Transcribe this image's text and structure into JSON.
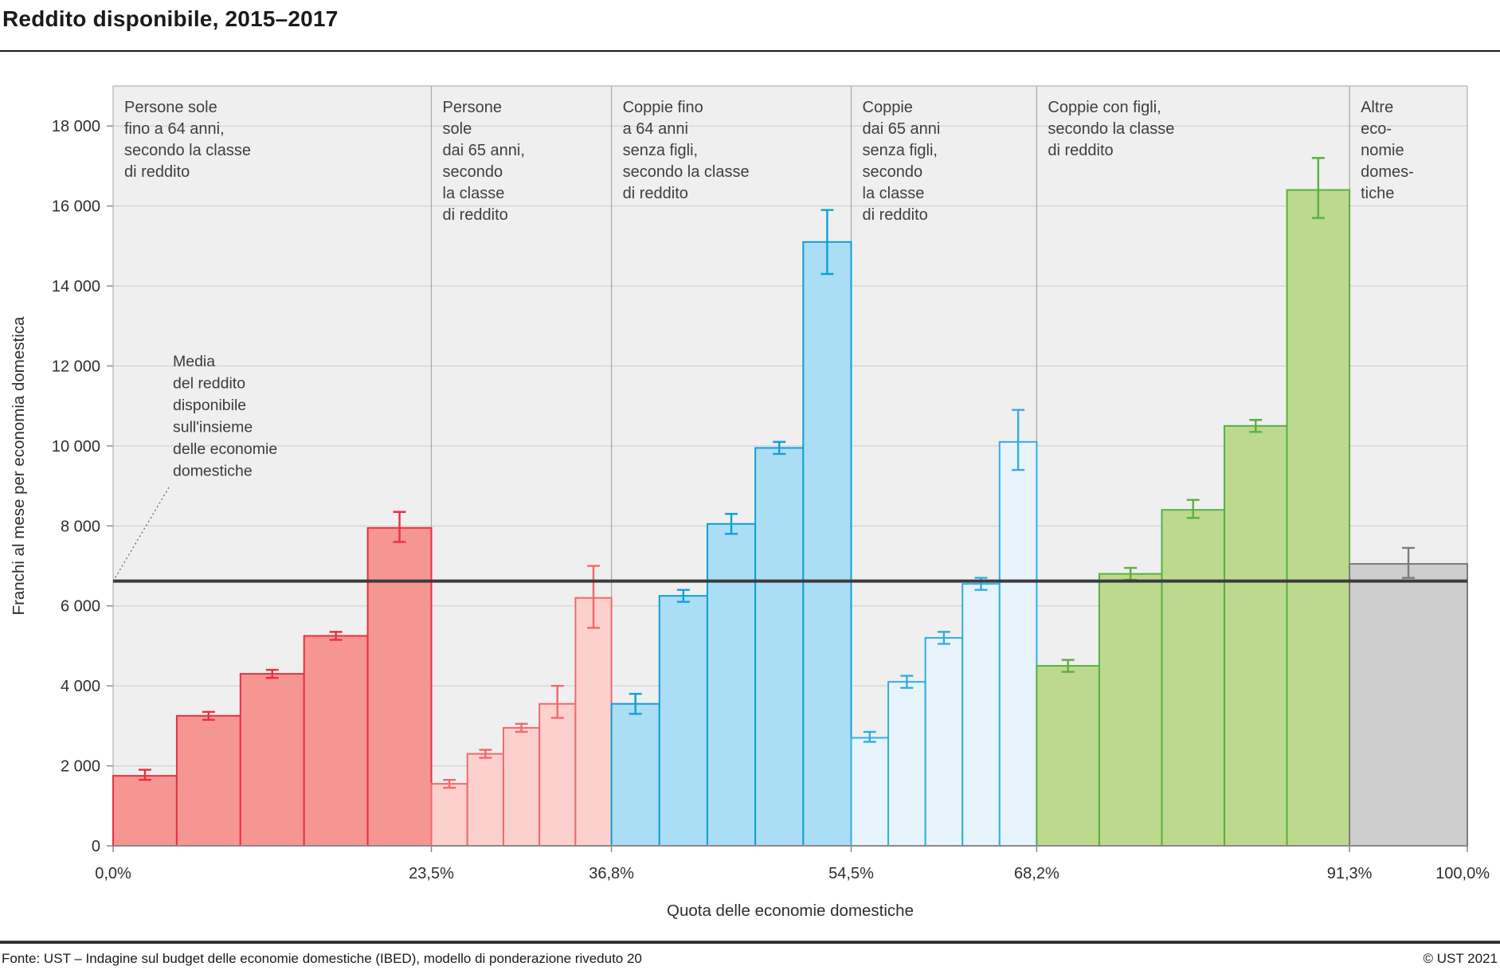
{
  "title": "Reddito disponibile, 2015–2017",
  "footer": {
    "source": "Fonte: UST – Indagine sul budget delle economie domestiche (IBED), modello di ponderazione riveduto 20",
    "copyright": "© UST 2021"
  },
  "chart_data": {
    "type": "bar",
    "title": "Reddito disponibile, 2015–2017",
    "xlabel": "Quota delle economie domestiche",
    "ylabel": "Franchi al mese per economia domestica",
    "ylim": [
      0,
      19000
    ],
    "grid": true,
    "background": "#efeff0",
    "grid_color": "#cccccc",
    "separator_color": "#a8a8a8",
    "frame_color": "#b0b0b0",
    "axis_color": "#8a8a8a",
    "yticks": [
      {
        "value": 0,
        "label": "0"
      },
      {
        "value": 2000,
        "label": "2 000"
      },
      {
        "value": 4000,
        "label": "4 000"
      },
      {
        "value": 6000,
        "label": "6 000"
      },
      {
        "value": 8000,
        "label": "8 000"
      },
      {
        "value": 10000,
        "label": "10 000"
      },
      {
        "value": 12000,
        "label": "12 000"
      },
      {
        "value": 14000,
        "label": "14 000"
      },
      {
        "value": 16000,
        "label": "16 000"
      },
      {
        "value": 18000,
        "label": "18 000"
      }
    ],
    "xticks": [
      {
        "pos": 0.0,
        "label": "0,0%"
      },
      {
        "pos": 23.5,
        "label": "23,5%"
      },
      {
        "pos": 36.8,
        "label": "36,8%"
      },
      {
        "pos": 54.5,
        "label": "54,5%"
      },
      {
        "pos": 68.2,
        "label": "68,2%"
      },
      {
        "pos": 91.3,
        "label": "91,3%"
      },
      {
        "pos": 100.0,
        "label": "100,0%"
      }
    ],
    "mean_line": {
      "value": 6620,
      "color": "#3b3b3b",
      "label_lines": [
        "Media",
        "del reddito",
        "disponibile",
        "sull'insieme",
        "delle economie",
        "domestiche"
      ]
    },
    "groups": [
      {
        "name": "persone-sole-fino-64",
        "label_lines": [
          "Persone sole",
          "fino a 64 anni,",
          "secondo la classe",
          "di reddito"
        ],
        "from_pct": 0.0,
        "to_pct": 23.5,
        "fill": "#f59693",
        "stroke": "#e7313f",
        "bars": [
          {
            "value": 1750,
            "low": 1650,
            "high": 1900
          },
          {
            "value": 3250,
            "low": 3150,
            "high": 3350
          },
          {
            "value": 4300,
            "low": 4200,
            "high": 4400
          },
          {
            "value": 5250,
            "low": 5150,
            "high": 5350
          },
          {
            "value": 7950,
            "low": 7600,
            "high": 8350
          }
        ]
      },
      {
        "name": "persone-sole-dai-65",
        "label_lines": [
          "Persone",
          "sole",
          "dai 65 anni,",
          "secondo",
          "la classe",
          "di reddito"
        ],
        "from_pct": 23.5,
        "to_pct": 36.8,
        "fill": "#fcd0cd",
        "stroke": "#f0696c",
        "bars": [
          {
            "value": 1550,
            "low": 1450,
            "high": 1650
          },
          {
            "value": 2300,
            "low": 2200,
            "high": 2400
          },
          {
            "value": 2950,
            "low": 2850,
            "high": 3050
          },
          {
            "value": 3550,
            "low": 3200,
            "high": 4000
          },
          {
            "value": 6200,
            "low": 5450,
            "high": 7000
          }
        ]
      },
      {
        "name": "coppie-fino-64-senza-figli",
        "label_lines": [
          "Coppie fino",
          "a 64 anni",
          "senza figli,",
          "secondo la classe",
          "di reddito"
        ],
        "from_pct": 36.8,
        "to_pct": 54.5,
        "fill": "#abdef5",
        "stroke": "#0f9fd8",
        "bars": [
          {
            "value": 3550,
            "low": 3300,
            "high": 3800
          },
          {
            "value": 6250,
            "low": 6100,
            "high": 6400
          },
          {
            "value": 8050,
            "low": 7800,
            "high": 8300
          },
          {
            "value": 9950,
            "low": 9800,
            "high": 10100
          },
          {
            "value": 15100,
            "low": 14300,
            "high": 15900
          }
        ]
      },
      {
        "name": "coppie-dai-65-senza-figli",
        "label_lines": [
          "Coppie",
          "dai 65 anni",
          "senza figli,",
          "secondo",
          "la classe",
          "di reddito"
        ],
        "from_pct": 54.5,
        "to_pct": 68.2,
        "fill": "#e7f4fc",
        "stroke": "#32ade3",
        "bars": [
          {
            "value": 2700,
            "low": 2600,
            "high": 2850
          },
          {
            "value": 4100,
            "low": 3950,
            "high": 4250
          },
          {
            "value": 5200,
            "low": 5050,
            "high": 5350
          },
          {
            "value": 6550,
            "low": 6400,
            "high": 6700
          },
          {
            "value": 10100,
            "low": 9400,
            "high": 10900
          }
        ]
      },
      {
        "name": "coppie-con-figli",
        "label_lines": [
          "Coppie con figli,",
          "secondo la classe",
          "di reddito"
        ],
        "from_pct": 68.2,
        "to_pct": 91.3,
        "fill": "#bcd98f",
        "stroke": "#58b03d",
        "bars": [
          {
            "value": 4500,
            "low": 4350,
            "high": 4650
          },
          {
            "value": 6800,
            "low": 6650,
            "high": 6950
          },
          {
            "value": 8400,
            "low": 8200,
            "high": 8650
          },
          {
            "value": 10500,
            "low": 10350,
            "high": 10650
          },
          {
            "value": 16400,
            "low": 15700,
            "high": 17200
          }
        ]
      },
      {
        "name": "altre-economie-domestiche",
        "label_lines": [
          "Altre",
          "eco-",
          "nomie",
          "domes-",
          "tiche"
        ],
        "from_pct": 91.3,
        "to_pct": 100.0,
        "fill": "#cecece",
        "stroke": "#7d7d7d",
        "bars": [
          {
            "value": 7050,
            "low": 6700,
            "high": 7450
          }
        ]
      }
    ]
  }
}
